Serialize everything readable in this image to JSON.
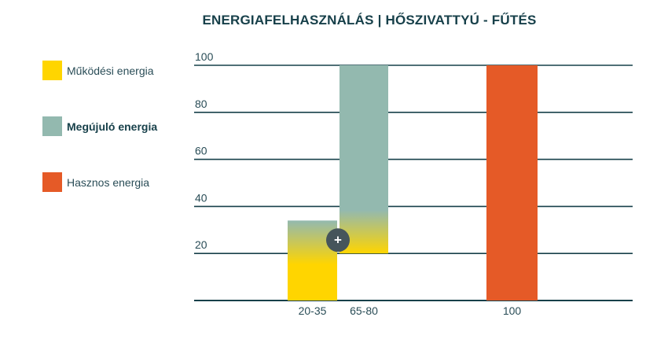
{
  "title": "ENERGIAFELHASZNÁLÁS | HŐSZIVATTYÚ - FŰTÉS",
  "legend": [
    {
      "label": "Működési energia",
      "color": "#ffd500",
      "bold": false
    },
    {
      "label": "Megújuló energia",
      "color": "#93b9af",
      "bold": true
    },
    {
      "label": "Hasznos energia",
      "color": "#e55a27",
      "bold": false
    }
  ],
  "colors": {
    "operating": "#ffd500",
    "renewable": "#93b9af",
    "useful": "#e55a27",
    "grid": "#17404a",
    "plus_button": "#46555b"
  },
  "chart_data": {
    "type": "bar",
    "title": "ENERGIAFELHASZNÁLÁS | HŐSZIVATTYÚ - FŰTÉS",
    "ylim": [
      0,
      100
    ],
    "yticks": [
      20,
      40,
      60,
      80,
      100
    ],
    "grid": true,
    "legend_position": "left",
    "categories": [
      "20-35",
      "65-80",
      "100"
    ],
    "bars": [
      {
        "category": "20-35",
        "series": "Működési energia",
        "from": 0,
        "to": 34,
        "gradient_top_color": "#93b9af"
      },
      {
        "category": "65-80",
        "series": "Megújuló energia",
        "from": 20,
        "to": 100,
        "gradient_bottom_color": "#ffd500"
      },
      {
        "category": "100",
        "series": "Hasznos energia",
        "from": 0,
        "to": 100
      }
    ],
    "annotations": [
      {
        "type": "plus-button",
        "label": "+",
        "near": "20-35 / 65-80",
        "value": 26
      }
    ]
  }
}
